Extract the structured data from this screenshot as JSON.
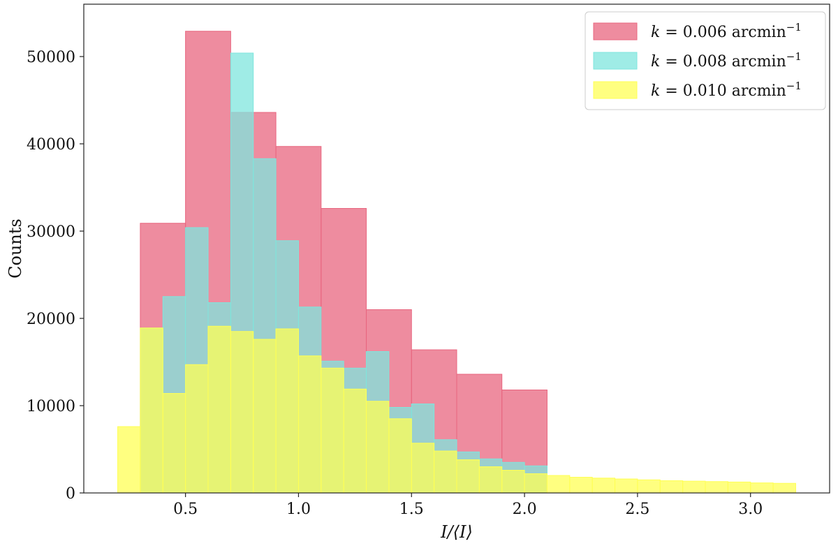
{
  "chart_data": {
    "type": "bar",
    "title": "",
    "xlabel": "I/⟨I⟩",
    "ylabel": "Counts",
    "xlim": [
      0.05,
      3.35
    ],
    "ylim": [
      0,
      56000
    ],
    "xticks": [
      0.5,
      1.0,
      1.5,
      2.0,
      2.5,
      3.0
    ],
    "xtick_labels": [
      "0.5",
      "1.0",
      "1.5",
      "2.0",
      "2.5",
      "3.0"
    ],
    "yticks": [
      0,
      10000,
      20000,
      30000,
      40000,
      50000
    ],
    "ytick_labels": [
      "0",
      "10000",
      "20000",
      "30000",
      "40000",
      "50000"
    ],
    "grid": false,
    "legend_position": "top-right",
    "series": [
      {
        "name": "k = 0.006 arcmin⁻¹",
        "label_parts": {
          "var": "k",
          "eq": " = 0.006 arcmin",
          "sup": "−1"
        },
        "color": "#e8667f",
        "bins": [
          {
            "x0": 0.3,
            "x1": 0.5,
            "value": 30900
          },
          {
            "x0": 0.5,
            "x1": 0.7,
            "value": 52900
          },
          {
            "x0": 0.7,
            "x1": 0.9,
            "value": 43600
          },
          {
            "x0": 0.9,
            "x1": 1.1,
            "value": 39700
          },
          {
            "x0": 1.1,
            "x1": 1.3,
            "value": 32600
          },
          {
            "x0": 1.3,
            "x1": 1.5,
            "value": 21000
          },
          {
            "x0": 1.5,
            "x1": 1.7,
            "value": 16400
          },
          {
            "x0": 1.7,
            "x1": 1.9,
            "value": 13600
          },
          {
            "x0": 1.9,
            "x1": 2.1,
            "value": 11800
          }
        ]
      },
      {
        "name": "k = 0.008 arcmin⁻¹",
        "label_parts": {
          "var": "k",
          "eq": " = 0.008 arcmin",
          "sup": "−1"
        },
        "color": "#7fe6dd",
        "bins": [
          {
            "x0": 0.3,
            "x1": 0.4,
            "value": 18900
          },
          {
            "x0": 0.4,
            "x1": 0.5,
            "value": 22500
          },
          {
            "x0": 0.5,
            "x1": 0.6,
            "value": 30400
          },
          {
            "x0": 0.6,
            "x1": 0.7,
            "value": 21800
          },
          {
            "x0": 0.7,
            "x1": 0.8,
            "value": 50400
          },
          {
            "x0": 0.8,
            "x1": 0.9,
            "value": 38300
          },
          {
            "x0": 0.9,
            "x1": 1.0,
            "value": 28900
          },
          {
            "x0": 1.0,
            "x1": 1.1,
            "value": 21300
          },
          {
            "x0": 1.1,
            "x1": 1.2,
            "value": 15100
          },
          {
            "x0": 1.2,
            "x1": 1.3,
            "value": 14300
          },
          {
            "x0": 1.3,
            "x1": 1.4,
            "value": 16200
          },
          {
            "x0": 1.4,
            "x1": 1.5,
            "value": 9800
          },
          {
            "x0": 1.5,
            "x1": 1.6,
            "value": 10200
          },
          {
            "x0": 1.6,
            "x1": 1.7,
            "value": 6100
          },
          {
            "x0": 1.7,
            "x1": 1.8,
            "value": 4700
          },
          {
            "x0": 1.8,
            "x1": 1.9,
            "value": 3900
          },
          {
            "x0": 1.9,
            "x1": 2.0,
            "value": 3500
          },
          {
            "x0": 2.0,
            "x1": 2.1,
            "value": 3100
          }
        ]
      },
      {
        "name": "k = 0.010 arcmin⁻¹",
        "label_parts": {
          "var": "k",
          "eq": " = 0.010 arcmin",
          "sup": "−1"
        },
        "color": "#ffff55",
        "bins": [
          {
            "x0": 0.2,
            "x1": 0.3,
            "value": 7600
          },
          {
            "x0": 0.3,
            "x1": 0.4,
            "value": 18900
          },
          {
            "x0": 0.4,
            "x1": 0.5,
            "value": 11400
          },
          {
            "x0": 0.5,
            "x1": 0.6,
            "value": 14700
          },
          {
            "x0": 0.6,
            "x1": 0.7,
            "value": 19100
          },
          {
            "x0": 0.7,
            "x1": 0.8,
            "value": 18500
          },
          {
            "x0": 0.8,
            "x1": 0.9,
            "value": 17600
          },
          {
            "x0": 0.9,
            "x1": 1.0,
            "value": 18800
          },
          {
            "x0": 1.0,
            "x1": 1.1,
            "value": 15700
          },
          {
            "x0": 1.1,
            "x1": 1.2,
            "value": 14300
          },
          {
            "x0": 1.2,
            "x1": 1.3,
            "value": 11900
          },
          {
            "x0": 1.3,
            "x1": 1.4,
            "value": 10500
          },
          {
            "x0": 1.4,
            "x1": 1.5,
            "value": 8500
          },
          {
            "x0": 1.5,
            "x1": 1.6,
            "value": 5700
          },
          {
            "x0": 1.6,
            "x1": 1.7,
            "value": 4800
          },
          {
            "x0": 1.7,
            "x1": 1.8,
            "value": 3800
          },
          {
            "x0": 1.8,
            "x1": 1.9,
            "value": 3000
          },
          {
            "x0": 1.9,
            "x1": 2.0,
            "value": 2600
          },
          {
            "x0": 2.0,
            "x1": 2.1,
            "value": 2200
          },
          {
            "x0": 2.1,
            "x1": 2.2,
            "value": 2000
          },
          {
            "x0": 2.2,
            "x1": 2.3,
            "value": 1800
          },
          {
            "x0": 2.3,
            "x1": 2.4,
            "value": 1700
          },
          {
            "x0": 2.4,
            "x1": 2.5,
            "value": 1600
          },
          {
            "x0": 2.5,
            "x1": 2.6,
            "value": 1500
          },
          {
            "x0": 2.6,
            "x1": 2.7,
            "value": 1400
          },
          {
            "x0": 2.7,
            "x1": 2.8,
            "value": 1350
          },
          {
            "x0": 2.8,
            "x1": 2.9,
            "value": 1300
          },
          {
            "x0": 2.9,
            "x1": 3.0,
            "value": 1250
          },
          {
            "x0": 3.0,
            "x1": 3.1,
            "value": 1150
          },
          {
            "x0": 3.1,
            "x1": 3.2,
            "value": 1100
          }
        ]
      }
    ]
  }
}
